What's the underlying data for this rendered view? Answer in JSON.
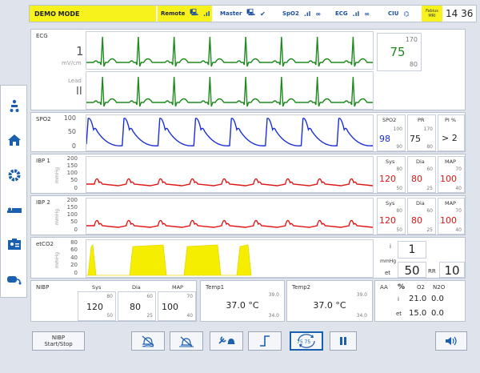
{
  "topbar": {
    "mode": "DEMO MODE",
    "remote": "Remote",
    "master": "Master",
    "spo2": "SpO2",
    "ecg": "ECG",
    "ciu": "CIU",
    "device_line1": "Fabius",
    "device_line2": "MRI",
    "time": "14 36"
  },
  "ecg": {
    "label": "ECG",
    "scale": "1",
    "scale_unit": "mV/cm",
    "lead_label": "Lead",
    "lead": "II",
    "hr_high": "170",
    "hr": "75",
    "hr_low": "80"
  },
  "spo2": {
    "label": "SPO2",
    "axis": [
      "100",
      "50",
      "0"
    ],
    "spo2_header": "SPO2",
    "spo2_high": "100",
    "spo2_value": "98",
    "spo2_low": "90",
    "pr_header": "PR",
    "pr_high": "170",
    "pr_value": "75",
    "pr_low": "80",
    "pi_header": "PI %",
    "pi_value": "> 2"
  },
  "ibp1": {
    "label": "IBP 1",
    "unit": "mmHg",
    "axis": [
      "200",
      "150",
      "100",
      "50",
      "0"
    ],
    "sys_header": "Sys",
    "sys_high": "80",
    "sys_value": "120",
    "sys_low": "50",
    "dia_header": "Dia",
    "dia_high": "60",
    "dia_value": "80",
    "dia_low": "25",
    "map_header": "MAP",
    "map_high": "70",
    "map_value": "100",
    "map_low": "40"
  },
  "ibp2": {
    "label": "IBP 2",
    "unit": "mmHg",
    "axis": [
      "200",
      "150",
      "100",
      "50",
      "0"
    ],
    "sys_header": "Sys",
    "sys_high": "80",
    "sys_value": "120",
    "sys_low": "50",
    "dia_header": "Dia",
    "dia_high": "60",
    "dia_value": "80",
    "dia_low": "25",
    "map_header": "MAP",
    "map_high": "70",
    "map_value": "100",
    "map_low": "40"
  },
  "etco2": {
    "label": "etCO2",
    "unit": "mmHg",
    "axis": [
      "80",
      "60",
      "40",
      "20",
      "0"
    ],
    "i_label": "i",
    "i_value": "1",
    "unit_label": "mmHg",
    "et_label": "et",
    "et_value": "50",
    "rr_label": "RR",
    "rr_value": "10"
  },
  "nibp": {
    "label": "NIBP",
    "sys_header": "Sys",
    "sys_high": "80",
    "sys_value": "120",
    "sys_low": "50",
    "dia_header": "Dia",
    "dia_high": "60",
    "dia_value": "80",
    "dia_low": "25",
    "map_header": "MAP",
    "map_high": "70",
    "map_value": "100",
    "map_low": "40"
  },
  "temp1": {
    "label": "Temp1",
    "high": "39.0",
    "value": "37.0 °C",
    "low": "34.0"
  },
  "temp2": {
    "label": "Temp2",
    "high": "39.0",
    "value": "37.0 °C",
    "low": "34.0"
  },
  "gas": {
    "aa": "AA",
    "pct": "%",
    "o2": "O2",
    "n2o": "N2O",
    "i_label": "i",
    "i_o2": "21.0",
    "i_n2o": "0.0",
    "et_label": "et",
    "et_o2": "15.0",
    "et_n2o": "0.0"
  },
  "toolbar": {
    "nibp_line1": "NIBP",
    "nibp_line2": "Start/Stop",
    "freeze_values": "75 75"
  },
  "colors": {
    "ecg": "#1e8a1e",
    "spo2": "#1a2ed8",
    "ibp": "#e01414",
    "co2": "#f5ee00",
    "accent": "#1a5fb0"
  }
}
